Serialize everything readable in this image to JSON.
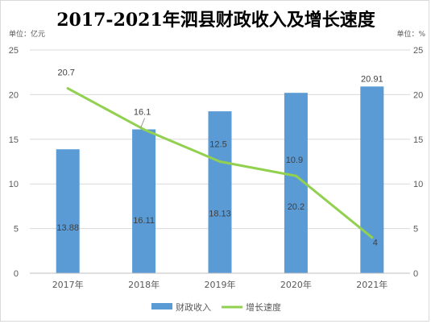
{
  "chart_data": {
    "type": "bar",
    "title": "2017-2021年泗县财政收入及增长速度",
    "left_unit": "单位：亿元",
    "right_unit": "单位：%",
    "categories": [
      "2017年",
      "2018年",
      "2019年",
      "2020年",
      "2021年"
    ],
    "series": [
      {
        "name": "财政收入",
        "type": "bar",
        "axis": "left",
        "color": "#5b9bd5",
        "values": [
          13.88,
          16.11,
          18.13,
          20.2,
          20.91
        ],
        "labels": [
          "13.88",
          "16.11",
          "18.13",
          "20.2",
          "20.91"
        ]
      },
      {
        "name": "增长速度",
        "type": "line",
        "axis": "right",
        "color": "#92d050",
        "values": [
          20.7,
          16.1,
          12.5,
          10.9,
          4
        ],
        "labels": [
          "20.7",
          "16.1",
          "12.5",
          "10.9",
          "4"
        ]
      }
    ],
    "y_left": {
      "min": 0,
      "max": 25,
      "ticks": [
        "0",
        "5",
        "10",
        "15",
        "20",
        "25"
      ]
    },
    "y_right": {
      "min": 0,
      "max": 25,
      "ticks": [
        "0",
        "5",
        "10",
        "15",
        "20",
        "25"
      ]
    },
    "grid": true,
    "legend_position": "bottom"
  }
}
